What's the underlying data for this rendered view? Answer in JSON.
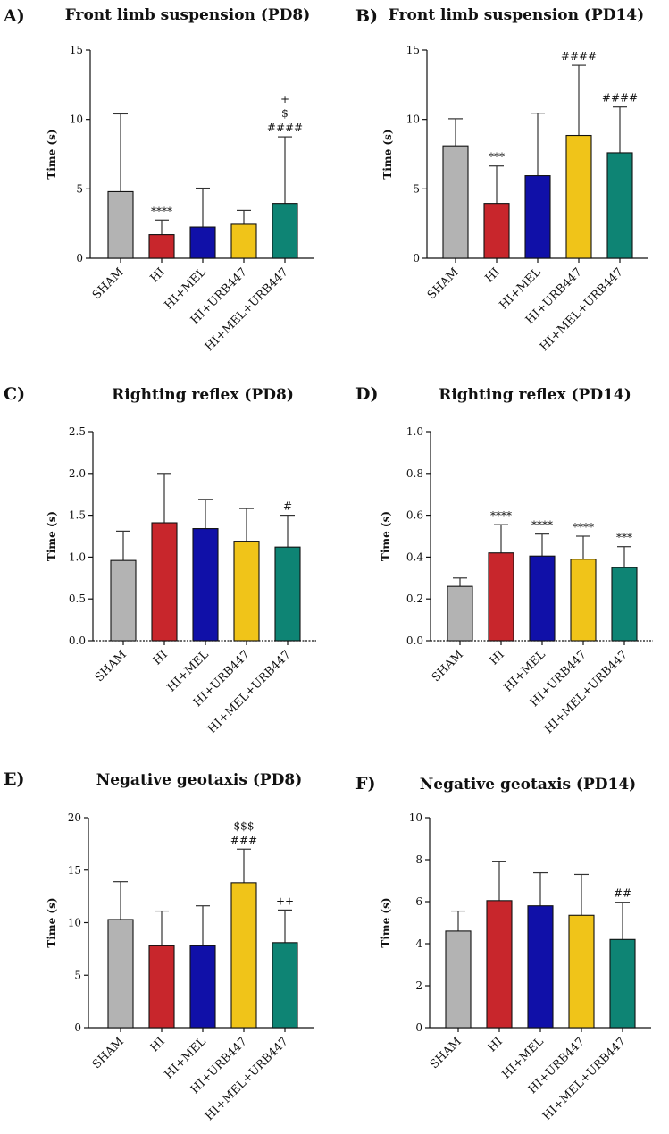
{
  "figure": {
    "y_axis_label": "Time (s)",
    "colors": {
      "SHAM": "#b3b3b3",
      "HI": "#c8262c",
      "HI+MEL": "#1010a8",
      "HI+URB447": "#f0c419",
      "HI+MEL+URB447": "#0e8474",
      "axis": "#111111",
      "error_bar": "#333333"
    }
  },
  "chart_data": [
    {
      "panel": "A)",
      "type": "bar",
      "title": "Front limb suspension (PD8)",
      "ylabel": "Time (s)",
      "ylim": [
        0,
        15
      ],
      "yticks": [
        0,
        5,
        10,
        15
      ],
      "categories": [
        "SHAM",
        "HI",
        "HI+MEL",
        "HI+URB447",
        "HI+MEL+URB447"
      ],
      "values": [
        4.8,
        1.7,
        2.25,
        2.45,
        3.95
      ],
      "errors": [
        10.4,
        2.75,
        5.05,
        3.45,
        8.75
      ],
      "annotations": [
        [],
        [
          "****"
        ],
        [],
        [],
        [
          "####",
          "$",
          "+"
        ]
      ]
    },
    {
      "panel": "B)",
      "type": "bar",
      "title": "Front limb suspension (PD14)",
      "ylabel": "Time (s)",
      "ylim": [
        0,
        15
      ],
      "yticks": [
        0,
        5,
        10,
        15
      ],
      "categories": [
        "SHAM",
        "HI",
        "HI+MEL",
        "HI+URB447",
        "HI+MEL+URB447"
      ],
      "values": [
        8.1,
        3.95,
        5.95,
        8.85,
        7.6
      ],
      "errors": [
        10.05,
        6.65,
        10.45,
        13.9,
        10.9
      ],
      "annotations": [
        [],
        [
          "***"
        ],
        [],
        [
          "####"
        ],
        [
          "####"
        ]
      ]
    },
    {
      "panel": "C)",
      "type": "bar",
      "title": "Righting reflex (PD8)",
      "ylabel": "Time (s)",
      "ylim": [
        0,
        2.5
      ],
      "yticks": [
        0.0,
        0.5,
        1.0,
        1.5,
        2.0,
        2.5
      ],
      "categories": [
        "SHAM",
        "HI",
        "HI+MEL",
        "HI+URB447",
        "HI+MEL+URB447"
      ],
      "values": [
        0.96,
        1.41,
        1.34,
        1.19,
        1.12
      ],
      "errors": [
        1.31,
        2.0,
        1.69,
        1.58,
        1.5
      ],
      "annotations": [
        [],
        [],
        [],
        [],
        [
          "#"
        ]
      ]
    },
    {
      "panel": "D)",
      "type": "bar",
      "title": "Righting reflex (PD14)",
      "ylabel": "Time (s)",
      "ylim": [
        0,
        1.0
      ],
      "yticks": [
        0.0,
        0.2,
        0.4,
        0.6,
        0.8,
        1.0
      ],
      "categories": [
        "SHAM",
        "HI",
        "HI+MEL",
        "HI+URB447",
        "HI+MEL+URB447"
      ],
      "values": [
        0.26,
        0.42,
        0.405,
        0.39,
        0.35
      ],
      "errors": [
        0.3,
        0.555,
        0.51,
        0.5,
        0.45
      ],
      "annotations": [
        [],
        [
          "****"
        ],
        [
          "****"
        ],
        [
          "****"
        ],
        [
          "***"
        ]
      ]
    },
    {
      "panel": "E)",
      "type": "bar",
      "title": "Negative geotaxis (PD8)",
      "ylabel": "Time (s)",
      "ylim": [
        0,
        20
      ],
      "yticks": [
        0,
        5,
        10,
        15,
        20
      ],
      "categories": [
        "SHAM",
        "HI",
        "HI+MEL",
        "HI+URB447",
        "HI+MEL+URB447"
      ],
      "values": [
        10.3,
        7.8,
        7.8,
        13.8,
        8.1
      ],
      "errors": [
        13.9,
        11.1,
        11.6,
        17.0,
        11.2
      ],
      "annotations": [
        [],
        [],
        [],
        [
          "###",
          "$$$"
        ],
        [
          "++"
        ]
      ]
    },
    {
      "panel": "F)",
      "type": "bar",
      "title": "Negative geotaxis (PD14)",
      "ylabel": "Time (s)",
      "ylim": [
        0,
        10
      ],
      "yticks": [
        0,
        2,
        4,
        6,
        8,
        10
      ],
      "categories": [
        "SHAM",
        "HI",
        "HI+MEL",
        "HI+URB447",
        "HI+MEL+URB447"
      ],
      "values": [
        4.6,
        6.05,
        5.8,
        5.35,
        4.2
      ],
      "errors": [
        5.55,
        7.9,
        7.38,
        7.3,
        5.97
      ],
      "annotations": [
        [],
        [],
        [],
        [],
        [
          "##"
        ]
      ]
    }
  ]
}
